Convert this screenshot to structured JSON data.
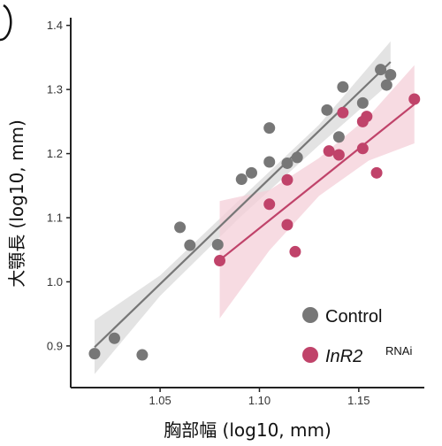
{
  "chart_data": {
    "type": "scatter",
    "xlabel": "胸部幅 (log10, mm)",
    "ylabel": "大顎長 (log10, mm)",
    "xlim": [
      1.005,
      1.183
    ],
    "ylim": [
      0.835,
      1.412
    ],
    "x_ticks": [
      1.05,
      1.1,
      1.15
    ],
    "x_tick_labels": [
      "1.05",
      "1.10",
      "1.15"
    ],
    "y_ticks": [
      0.9,
      1.0,
      1.1,
      1.2,
      1.3,
      1.4
    ],
    "y_tick_labels": [
      "0.9",
      "1.0",
      "1.1",
      "1.2",
      "1.3",
      "1.4"
    ],
    "grid": false,
    "legend_position": "bottom-right",
    "series": [
      {
        "name": "Control",
        "color": "#777777",
        "band_color": "#d9d9d9",
        "points": [
          [
            1.017,
            0.888
          ],
          [
            1.027,
            0.912
          ],
          [
            1.041,
            0.886
          ],
          [
            1.06,
            1.085
          ],
          [
            1.065,
            1.057
          ],
          [
            1.079,
            1.058
          ],
          [
            1.091,
            1.16
          ],
          [
            1.096,
            1.17
          ],
          [
            1.105,
            1.187
          ],
          [
            1.105,
            1.24
          ],
          [
            1.114,
            1.185
          ],
          [
            1.119,
            1.194
          ],
          [
            1.134,
            1.268
          ],
          [
            1.14,
            1.226
          ],
          [
            1.142,
            1.304
          ],
          [
            1.152,
            1.279
          ],
          [
            1.161,
            1.331
          ],
          [
            1.164,
            1.307
          ],
          [
            1.166,
            1.323
          ]
        ],
        "fit": {
          "x": [
            1.017,
            1.166
          ],
          "y": [
            0.898,
            1.343
          ]
        },
        "band": {
          "x": [
            1.017,
            1.05,
            1.09,
            1.13,
            1.166
          ],
          "upper": [
            0.94,
            1.01,
            1.128,
            1.245,
            1.375
          ],
          "lower": [
            0.856,
            0.978,
            1.1,
            1.213,
            1.311
          ]
        }
      },
      {
        "name": "InR2",
        "superscript": "RNAi",
        "color": "#c0436a",
        "band_color": "#f4cfd8",
        "points": [
          [
            1.08,
            1.033
          ],
          [
            1.105,
            1.121
          ],
          [
            1.114,
            1.089
          ],
          [
            1.114,
            1.159
          ],
          [
            1.118,
            1.047
          ],
          [
            1.135,
            1.204
          ],
          [
            1.14,
            1.198
          ],
          [
            1.142,
            1.264
          ],
          [
            1.152,
            1.208
          ],
          [
            1.152,
            1.25
          ],
          [
            1.154,
            1.258
          ],
          [
            1.159,
            1.17
          ],
          [
            1.178,
            1.285
          ]
        ],
        "fit": {
          "x": [
            1.08,
            1.178
          ],
          "y": [
            1.034,
            1.277
          ]
        },
        "band": {
          "x": [
            1.08,
            1.105,
            1.13,
            1.155,
            1.178
          ],
          "upper": [
            1.126,
            1.143,
            1.193,
            1.258,
            1.338
          ],
          "lower": [
            0.943,
            1.049,
            1.134,
            1.189,
            1.216
          ]
        }
      }
    ]
  }
}
